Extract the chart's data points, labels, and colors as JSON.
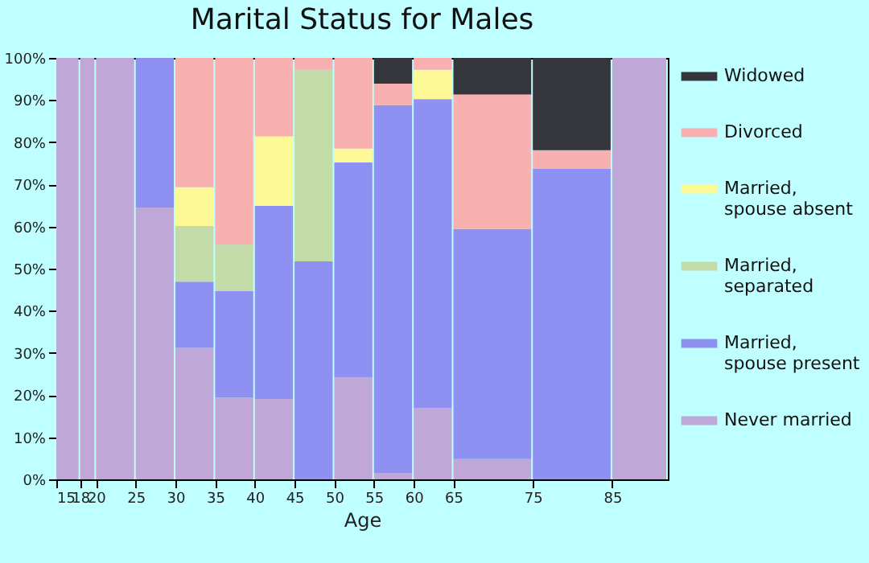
{
  "chart_data": {
    "type": "bar",
    "title": "Marital Status for Males",
    "xlabel": "Age",
    "stacked": true,
    "legend": "right",
    "grid": false,
    "x": [
      16.5,
      19,
      22.5,
      27.5,
      32.5,
      37.5,
      42.5,
      47.5,
      52.5,
      57.5,
      62.5,
      70,
      80,
      88.5
    ],
    "xlim": [
      15,
      92
    ],
    "xticks": [
      15,
      18,
      20,
      25,
      30,
      35,
      40,
      45,
      50,
      55,
      60,
      65,
      75,
      85
    ],
    "ylim": [
      0,
      100
    ],
    "yticks": [
      {
        "value": 0,
        "label": "0%"
      },
      {
        "value": 10,
        "label": "10%"
      },
      {
        "value": 20,
        "label": "20%"
      },
      {
        "value": 30,
        "label": "30%"
      },
      {
        "value": 40,
        "label": "40%"
      },
      {
        "value": 50,
        "label": "50%"
      },
      {
        "value": 60,
        "label": "60%"
      },
      {
        "value": 70,
        "label": "70%"
      },
      {
        "value": 80,
        "label": "80%"
      },
      {
        "value": 90,
        "label": "90%"
      },
      {
        "value": 100,
        "label": "100%"
      }
    ],
    "series": [
      {
        "name": "Never married",
        "color": "#bfa8d8",
        "values": [
          100,
          100,
          100,
          64.5,
          31.2,
          19.4,
          19.1,
          0,
          24.2,
          1.5,
          16.9,
          4.8,
          0,
          100
        ]
      },
      {
        "name": "Married, spouse present",
        "color": "#8e90f2",
        "values": [
          0,
          0,
          0,
          35.5,
          15.7,
          25.3,
          45.8,
          51.7,
          51.0,
          87.3,
          73.3,
          54.6,
          73.7,
          0
        ]
      },
      {
        "name": "Married, separated",
        "color": "#c3dba8",
        "values": [
          0,
          0,
          0,
          0,
          13.2,
          11.0,
          0,
          45.5,
          0,
          0,
          0,
          0,
          0,
          0
        ]
      },
      {
        "name": "Married, spouse absent",
        "color": "#fdf997",
        "values": [
          0,
          0,
          0,
          0,
          9.2,
          0,
          16.5,
          0,
          3.3,
          0,
          7.0,
          0,
          0,
          0
        ]
      },
      {
        "name": "Divorced",
        "color": "#f8b0b0",
        "values": [
          0,
          0,
          0,
          0,
          30.7,
          44.3,
          18.6,
          2.8,
          21.5,
          5.1,
          2.8,
          31.9,
          4.4,
          0
        ]
      },
      {
        "name": "Widowed",
        "color": "#35363b",
        "values": [
          0,
          0,
          0,
          0,
          0,
          0,
          0,
          0,
          0,
          6.1,
          0,
          8.7,
          21.9,
          0
        ]
      }
    ]
  }
}
